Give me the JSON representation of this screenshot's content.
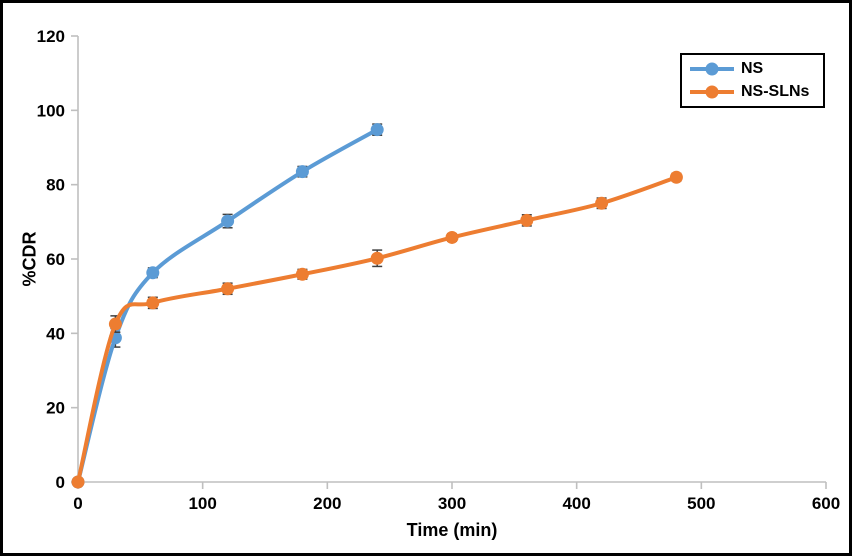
{
  "chart_data": {
    "type": "line",
    "title": "",
    "xlabel": "Time (min)",
    "ylabel": "%CDR",
    "xlim": [
      0,
      600
    ],
    "ylim": [
      0,
      120
    ],
    "xticks": [
      0,
      100,
      200,
      300,
      400,
      500,
      600
    ],
    "yticks": [
      0,
      20,
      40,
      60,
      80,
      100,
      120
    ],
    "grid": false,
    "legend_position": "top-right",
    "axis_color": "#BFBFBF",
    "error_bar_color": "#404040",
    "smooth_lines": true,
    "series": [
      {
        "name": "NS",
        "color": "#5B9BD5",
        "x": [
          0,
          30,
          60,
          120,
          180,
          240
        ],
        "y": [
          0,
          38.8,
          56.3,
          70.2,
          83.5,
          94.8
        ],
        "yerr": [
          0,
          2.5,
          1.3,
          1.8,
          1.4,
          1.5
        ]
      },
      {
        "name": "NS-SLNs",
        "color": "#ED7D31",
        "x": [
          0,
          30,
          60,
          120,
          180,
          240,
          300,
          360,
          420,
          480
        ],
        "y": [
          0,
          42.5,
          48.2,
          52.0,
          55.9,
          60.2,
          65.8,
          70.4,
          75.0,
          82.0
        ],
        "yerr": [
          0,
          2.2,
          1.5,
          1.5,
          1.3,
          2.2,
          1.0,
          1.5,
          1.4,
          1.0
        ]
      }
    ]
  }
}
